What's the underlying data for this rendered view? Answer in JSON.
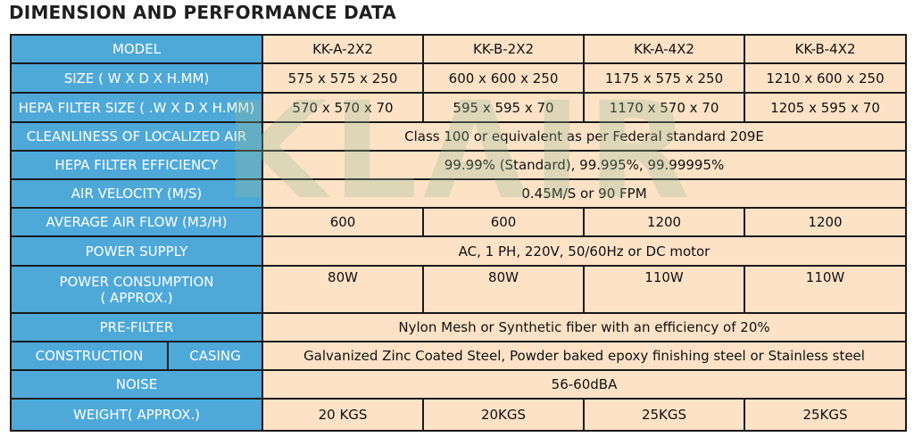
{
  "title": "DIMENSION AND PERFORMANCE DATA",
  "watermark": "KLAIR",
  "colors": {
    "label_bg": "#4ea9d9",
    "value_bg": "#fde2c6",
    "border": "#1a1a1a"
  },
  "table": {
    "model": {
      "label": "MODEL",
      "values": [
        "KK-A-2X2",
        "KK-B-2X2",
        "KK-A-4X2",
        "KK-B-4X2"
      ]
    },
    "size": {
      "label": "SIZE ( W X D X H.MM)",
      "values": [
        "575 x 575 x 250",
        "600 x 600 x 250",
        "1175 x 575 x 250",
        "1210 x 600 x 250"
      ]
    },
    "hepa_size": {
      "label": "HEPA FILTER SIZE ( .W X D X H.MM)",
      "values": [
        "570  x 570 x 70",
        "595 x 595 x 70",
        "1170 x 570 x 70",
        "1205 x 595 x 70"
      ]
    },
    "cleanliness": {
      "label": "CLEANLINESS OF LOCALIZED AIR",
      "value": "Class 100 or equivalent as per Federal standard 209E"
    },
    "efficiency": {
      "label": "HEPA FILTER EFFICIENCY",
      "value": "99.99% (Standard), 99.995%, 99.99995%"
    },
    "velocity": {
      "label": "AIR VELOCITY (M/S)",
      "value": "0.45M/S or 90 FPM"
    },
    "airflow": {
      "label": "AVERAGE AIR FLOW (M3/H)",
      "values": [
        "600",
        "600",
        "1200",
        "1200"
      ]
    },
    "power_supply": {
      "label": "POWER SUPPLY",
      "value": "AC, 1 PH, 220V, 50/60Hz or DC motor"
    },
    "power_consumption": {
      "label_line1": "POWER CONSUMPTION",
      "label_line2": "( APPROX.)",
      "values": [
        "80W",
        "80W",
        "110W",
        "110W"
      ]
    },
    "prefilter": {
      "label": "PRE-FILTER",
      "value": "Nylon Mesh or Synthetic fiber with an efficiency of 20%"
    },
    "construction": {
      "label": "CONSTRUCTION",
      "sublabel": "CASING",
      "value": "Galvanized Zinc Coated Steel, Powder baked epoxy finishing steel or Stainless steel"
    },
    "noise": {
      "label": "NOISE",
      "value": "56-60dBA"
    },
    "weight": {
      "label": "WEIGHT( APPROX.)",
      "values": [
        "20 KGS",
        "20KGS",
        "25KGS",
        "25KGS"
      ]
    }
  }
}
